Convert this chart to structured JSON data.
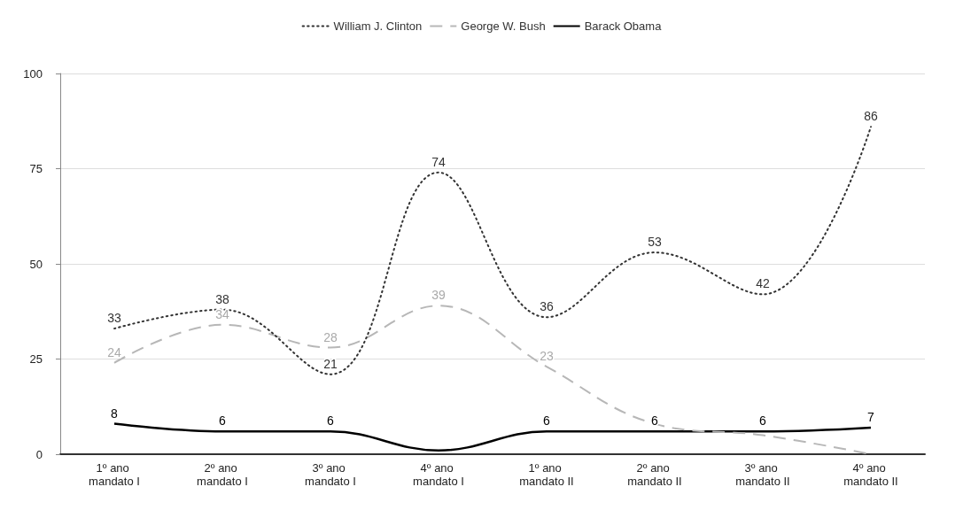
{
  "chart_data": {
    "type": "line",
    "categories": [
      "1º ano mandato I",
      "2º ano mandato I",
      "3º ano mandato I",
      "4º ano mandato I",
      "1º ano mandato II",
      "2º ano mandato II",
      "3º ano mandato II",
      "4º ano mandato II"
    ],
    "series": [
      {
        "name": "William J. Clinton",
        "color": "#333333",
        "line_style": "dotted",
        "values": [
          33,
          38,
          21,
          74,
          36,
          53,
          42,
          86
        ],
        "value_labels": [
          "33",
          "38",
          "21",
          "74",
          "36",
          "53",
          "42",
          "86"
        ]
      },
      {
        "name": "George W. Bush",
        "color": "#b7b7b7",
        "line_style": "dashed",
        "values": [
          24,
          34,
          28,
          39,
          23,
          8,
          5,
          0
        ],
        "value_labels": [
          "24",
          "34",
          "28",
          "39",
          "23",
          null,
          null,
          null
        ]
      },
      {
        "name": "Barack Obama",
        "color": "#000000",
        "line_style": "solid",
        "values": [
          8,
          6,
          6,
          1,
          6,
          6,
          6,
          7
        ],
        "value_labels": [
          "8",
          "6",
          "6",
          null,
          "6",
          "6",
          "6",
          "7"
        ]
      }
    ],
    "ylim": [
      0,
      100
    ],
    "yticks": [
      0,
      25,
      50,
      75,
      100
    ],
    "grid": "y",
    "legend": "top",
    "marker": "none"
  }
}
